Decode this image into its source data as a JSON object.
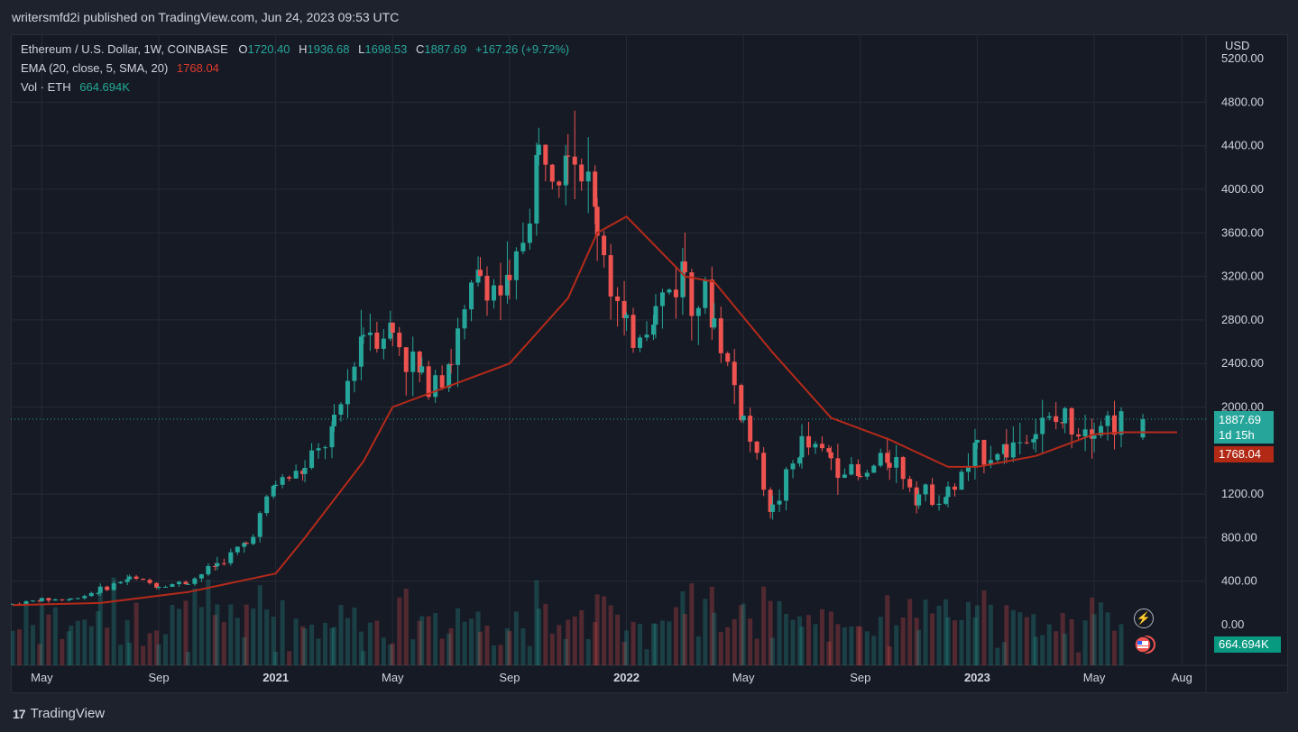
{
  "header": {
    "published": "writersmfd2i published on TradingView.com, Jun 24, 2023 09:53 UTC"
  },
  "legend": {
    "symbol": "Ethereum / U.S. Dollar, 1W, COINBASE",
    "o_label": "O",
    "o_value": "1720.40",
    "h_label": "H",
    "h_value": "1936.68",
    "l_label": "L",
    "l_value": "1698.53",
    "c_label": "C",
    "c_value": "1887.69",
    "change": "+167.26 (+9.72%)",
    "ema_label": "EMA (20, close, 5, SMA, 20)",
    "ema_value": "1768.04",
    "vol_label": "Vol · ETH",
    "vol_value": "664.694K"
  },
  "axis": {
    "currency": "USD",
    "price_ticks": [
      "5200.00",
      "4800.00",
      "4400.00",
      "4000.00",
      "3600.00",
      "3200.00",
      "2800.00",
      "2400.00",
      "2000.00",
      "1200.00",
      "800.00",
      "400.00",
      "0.00"
    ],
    "time_ticks": [
      "May",
      "Sep",
      "2021",
      "May",
      "Sep",
      "2022",
      "May",
      "Sep",
      "2023",
      "May",
      "Aug"
    ]
  },
  "badges": {
    "last_price": "1887.69",
    "countdown": "1d 15h",
    "ema": "1768.04",
    "volume": "664.694K"
  },
  "colors": {
    "up": "#26a69a",
    "down": "#ef5350",
    "ema": "#b52a1a",
    "bg": "#161a25",
    "grid": "#262a35"
  },
  "footer": {
    "brand": "TradingView",
    "logo_mark": "17"
  },
  "chart_data": {
    "type": "candlestick",
    "title": "Ethereum / U.S. Dollar, 1W, COINBASE",
    "ylabel": "USD",
    "ylim": [
      0,
      5200
    ],
    "x_range": [
      "2020-04",
      "2023-08"
    ],
    "grid": true,
    "price_ticks": [
      0,
      400,
      800,
      1200,
      2000,
      2400,
      2800,
      3200,
      3600,
      4000,
      4400,
      4800
    ],
    "series": [
      {
        "name": "ETH/USD weekly close (approx.)",
        "months": [
          "2020-04",
          "2020-05",
          "2020-06",
          "2020-07",
          "2020-08",
          "2020-09",
          "2020-10",
          "2020-11",
          "2020-12",
          "2021-01",
          "2021-02",
          "2021-03",
          "2021-04",
          "2021-05",
          "2021-06",
          "2021-07",
          "2021-08",
          "2021-09",
          "2021-10",
          "2021-11",
          "2021-12",
          "2022-01",
          "2022-02",
          "2022-03",
          "2022-04",
          "2022-05",
          "2022-06",
          "2022-07",
          "2022-08",
          "2022-09",
          "2022-10",
          "2022-11",
          "2022-12",
          "2023-01",
          "2023-02",
          "2023-03",
          "2023-04",
          "2023-05",
          "2023-06"
        ],
        "close": [
          190,
          230,
          235,
          320,
          430,
          360,
          390,
          560,
          740,
          1300,
          1420,
          1780,
          2750,
          2700,
          2250,
          2450,
          3220,
          3000,
          4300,
          4630,
          3700,
          2600,
          2900,
          3300,
          2800,
          1900,
          1050,
          1650,
          1550,
          1330,
          1570,
          1200,
          1190,
          1580,
          1620,
          1800,
          1870,
          1870,
          1888
        ]
      },
      {
        "name": "EMA (20, close, 5, SMA, 20)",
        "months": [
          "2020-04",
          "2020-07",
          "2020-10",
          "2021-01",
          "2021-02",
          "2021-04",
          "2021-05",
          "2021-07",
          "2021-09",
          "2021-11",
          "2021-12",
          "2022-01",
          "2022-03",
          "2022-04",
          "2022-06",
          "2022-08",
          "2022-10",
          "2022-12",
          "2023-01",
          "2023-03",
          "2023-05",
          "2023-06"
        ],
        "values": [
          180,
          200,
          300,
          470,
          800,
          1500,
          2000,
          2200,
          2400,
          3000,
          3600,
          3750,
          3200,
          3150,
          2500,
          1900,
          1700,
          1450,
          1450,
          1550,
          1750,
          1768
        ]
      }
    ],
    "volume_unit": "ETH",
    "last_volume": "664.694K"
  }
}
